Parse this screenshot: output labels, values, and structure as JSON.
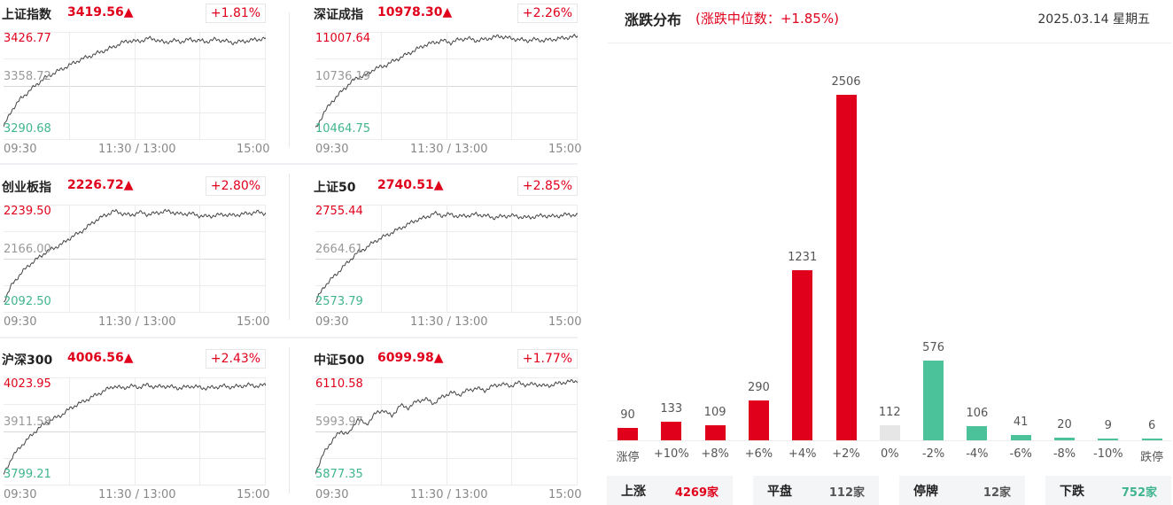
{
  "indices": [
    {
      "name": "上证指数",
      "value": "3419.56▲",
      "change": "+1.81%",
      "high": "3426.77",
      "mid": "3358.72",
      "low": "3290.68",
      "times": [
        "09:30",
        "11:30 / 13:00",
        "15:00"
      ],
      "series": [
        0.12,
        0.28,
        0.38,
        0.45,
        0.52,
        0.58,
        0.62,
        0.66,
        0.7,
        0.74,
        0.77,
        0.8,
        0.83,
        0.86,
        0.9,
        0.92,
        0.91,
        0.94,
        0.93,
        0.9,
        0.92,
        0.91,
        0.93,
        0.92,
        0.91,
        0.93,
        0.92,
        0.9,
        0.91,
        0.92,
        0.93,
        0.94
      ]
    },
    {
      "name": "深证成指",
      "value": "10978.30▲",
      "change": "+2.26%",
      "high": "11007.64",
      "mid": "10736.19",
      "low": "10464.75",
      "times": [
        "09:30",
        "11:30 / 13:00",
        "15:00"
      ],
      "series": [
        0.1,
        0.25,
        0.36,
        0.44,
        0.52,
        0.58,
        0.6,
        0.66,
        0.68,
        0.72,
        0.76,
        0.8,
        0.84,
        0.88,
        0.9,
        0.92,
        0.9,
        0.93,
        0.94,
        0.92,
        0.93,
        0.95,
        0.96,
        0.94,
        0.93,
        0.92,
        0.93,
        0.92,
        0.93,
        0.94,
        0.95,
        0.96
      ]
    },
    {
      "name": "创业板指",
      "value": "2226.72▲",
      "change": "+2.80%",
      "high": "2239.50",
      "mid": "2166.00",
      "low": "2092.50",
      "times": [
        "09:30",
        "11:30 / 13:00",
        "15:00"
      ],
      "series": [
        0.1,
        0.26,
        0.36,
        0.44,
        0.5,
        0.56,
        0.6,
        0.64,
        0.7,
        0.74,
        0.8,
        0.86,
        0.9,
        0.94,
        0.92,
        0.9,
        0.93,
        0.91,
        0.92,
        0.94,
        0.93,
        0.91,
        0.92,
        0.9,
        0.89,
        0.9,
        0.91,
        0.9,
        0.91,
        0.92,
        0.93,
        0.92
      ]
    },
    {
      "name": "上证50",
      "value": "2740.51▲",
      "change": "+2.85%",
      "high": "2755.44",
      "mid": "2664.61",
      "low": "2573.79",
      "times": [
        "09:30",
        "11:30 / 13:00",
        "15:00"
      ],
      "series": [
        0.1,
        0.24,
        0.32,
        0.4,
        0.48,
        0.56,
        0.6,
        0.66,
        0.7,
        0.74,
        0.78,
        0.82,
        0.86,
        0.88,
        0.92,
        0.9,
        0.91,
        0.89,
        0.9,
        0.91,
        0.9,
        0.88,
        0.89,
        0.9,
        0.89,
        0.88,
        0.89,
        0.9,
        0.89,
        0.9,
        0.91,
        0.9
      ]
    },
    {
      "name": "沪深300",
      "value": "4006.56▲",
      "change": "+2.43%",
      "high": "4023.95",
      "mid": "3911.58",
      "low": "3799.21",
      "times": [
        "09:30",
        "11:30 / 13:00",
        "15:00"
      ],
      "series": [
        0.1,
        0.26,
        0.36,
        0.44,
        0.52,
        0.58,
        0.62,
        0.66,
        0.72,
        0.76,
        0.8,
        0.84,
        0.88,
        0.92,
        0.9,
        0.92,
        0.91,
        0.93,
        0.91,
        0.92,
        0.91,
        0.9,
        0.92,
        0.91,
        0.9,
        0.91,
        0.92,
        0.91,
        0.92,
        0.93,
        0.92,
        0.93
      ]
    },
    {
      "name": "中证500",
      "value": "6099.98▲",
      "change": "+1.77%",
      "high": "6110.58",
      "mid": "5993.97",
      "low": "5877.35",
      "times": [
        "09:30",
        "11:30 / 13:00",
        "15:00"
      ],
      "series": [
        0.12,
        0.3,
        0.42,
        0.5,
        0.48,
        0.62,
        0.56,
        0.66,
        0.7,
        0.64,
        0.74,
        0.72,
        0.78,
        0.8,
        0.76,
        0.82,
        0.86,
        0.84,
        0.88,
        0.9,
        0.88,
        0.92,
        0.94,
        0.92,
        0.95,
        0.93,
        0.94,
        0.92,
        0.93,
        0.95,
        0.96,
        0.97
      ]
    }
  ],
  "distribution": {
    "title": "涨跌分布",
    "subtitle": "(涨跌中位数：+1.85%)",
    "date": "2025.03.14 星期五",
    "bars": [
      {
        "label": "涨停",
        "count": "90",
        "value": 90,
        "color": "#e0001b"
      },
      {
        "label": "+10%",
        "count": "133",
        "value": 133,
        "color": "#e0001b"
      },
      {
        "label": "+8%",
        "count": "109",
        "value": 109,
        "color": "#e0001b"
      },
      {
        "label": "+6%",
        "count": "290",
        "value": 290,
        "color": "#e0001b"
      },
      {
        "label": "+4%",
        "count": "1231",
        "value": 1231,
        "color": "#e0001b"
      },
      {
        "label": "+2%",
        "count": "2506",
        "value": 2506,
        "color": "#e0001b"
      },
      {
        "label": "0%",
        "count": "112",
        "value": 112,
        "color": "#e6e6e6"
      },
      {
        "label": "-2%",
        "count": "576",
        "value": 576,
        "color": "#4cc29a"
      },
      {
        "label": "-4%",
        "count": "106",
        "value": 106,
        "color": "#4cc29a"
      },
      {
        "label": "-6%",
        "count": "41",
        "value": 41,
        "color": "#4cc29a"
      },
      {
        "label": "-8%",
        "count": "20",
        "value": 20,
        "color": "#4cc29a"
      },
      {
        "label": "-10%",
        "count": "9",
        "value": 9,
        "color": "#4cc29a"
      },
      {
        "label": "跌停",
        "count": "6",
        "value": 6,
        "color": "#4cc29a"
      }
    ],
    "summary": [
      {
        "label": "上涨",
        "value": "4269家",
        "color": "#e0001b"
      },
      {
        "label": "平盘",
        "value": "112家",
        "color": "#555555"
      },
      {
        "label": "停牌",
        "value": "12家",
        "color": "#555555"
      },
      {
        "label": "下跌",
        "value": "752家",
        "color": "#3fb58f"
      }
    ]
  }
}
